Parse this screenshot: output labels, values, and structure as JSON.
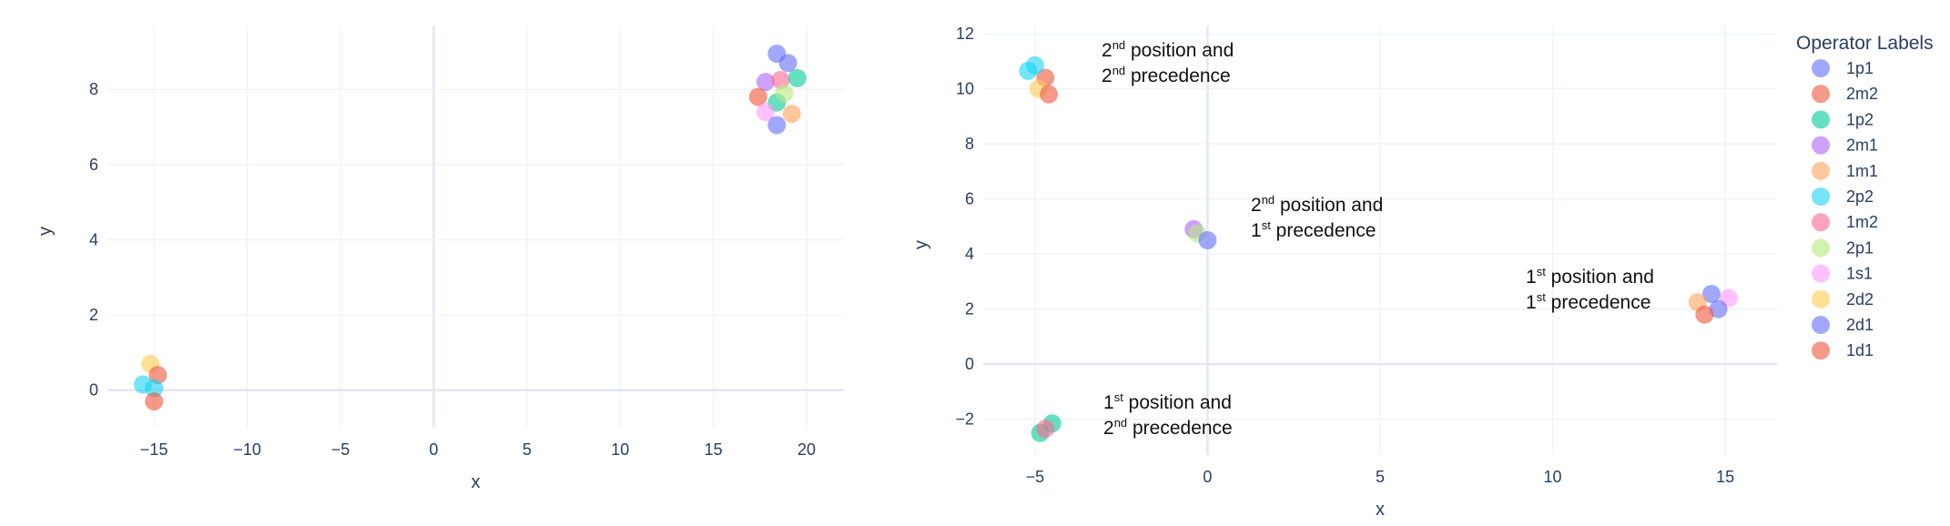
{
  "chart_data": [
    {
      "type": "scatter",
      "title": "",
      "xlabel": "x",
      "ylabel": "y",
      "xlim": [
        -17.5,
        22
      ],
      "ylim": [
        -1,
        9.7
      ],
      "xticks": [
        -15,
        -10,
        -5,
        0,
        5,
        10,
        15,
        20
      ],
      "yticks": [
        0,
        2,
        4,
        6,
        8
      ],
      "xtick_labels": [
        "−15",
        "−10",
        "−5",
        "0",
        "5",
        "10",
        "15",
        "20"
      ],
      "ytick_labels": [
        "0",
        "2",
        "4",
        "6",
        "8"
      ],
      "grid": true,
      "points": [
        {
          "x": 18.4,
          "y": 8.95,
          "color": "#636efa"
        },
        {
          "x": 19.0,
          "y": 8.7,
          "color": "#636efa"
        },
        {
          "x": 17.8,
          "y": 8.2,
          "color": "#ab63fa"
        },
        {
          "x": 18.6,
          "y": 8.25,
          "color": "#ff6692"
        },
        {
          "x": 19.5,
          "y": 8.3,
          "color": "#00cc96"
        },
        {
          "x": 17.4,
          "y": 7.8,
          "color": "#ef553b"
        },
        {
          "x": 18.4,
          "y": 7.65,
          "color": "#00cc96"
        },
        {
          "x": 18.8,
          "y": 7.9,
          "color": "#b6e880"
        },
        {
          "x": 17.8,
          "y": 7.4,
          "color": "#ff97ff"
        },
        {
          "x": 19.2,
          "y": 7.35,
          "color": "#ffa15a"
        },
        {
          "x": 18.4,
          "y": 7.05,
          "color": "#636efa"
        },
        {
          "x": -15.2,
          "y": 0.7,
          "color": "#fecb52"
        },
        {
          "x": -14.8,
          "y": 0.4,
          "color": "#ef553b"
        },
        {
          "x": -15.6,
          "y": 0.15,
          "color": "#19d3f3"
        },
        {
          "x": -15.0,
          "y": 0.05,
          "color": "#19d3f3"
        },
        {
          "x": -15.0,
          "y": -0.3,
          "color": "#ef553b"
        }
      ]
    },
    {
      "type": "scatter",
      "title": "",
      "xlabel": "x",
      "ylabel": "y",
      "xlim": [
        -6.5,
        16.5
      ],
      "ylim": [
        -3.3,
        12.3
      ],
      "xticks": [
        -5,
        0,
        5,
        10,
        15
      ],
      "yticks": [
        -2,
        0,
        2,
        4,
        6,
        8,
        10,
        12
      ],
      "xtick_labels": [
        "−5",
        "0",
        "5",
        "10",
        "15"
      ],
      "ytick_labels": [
        "−2",
        "0",
        "2",
        "4",
        "6",
        "8",
        "10",
        "12"
      ],
      "grid": true,
      "series": [
        {
          "name": "1p1",
          "color": "#636efa",
          "points": [
            {
              "x": 14.6,
              "y": 2.55
            }
          ]
        },
        {
          "name": "2m2",
          "color": "#ef553b",
          "points": [
            {
              "x": -4.7,
              "y": 10.4
            }
          ]
        },
        {
          "name": "1p2",
          "color": "#00cc96",
          "points": [
            {
              "x": -4.5,
              "y": -2.15
            },
            {
              "x": -4.85,
              "y": -2.5
            }
          ]
        },
        {
          "name": "2m1",
          "color": "#ab63fa",
          "points": [
            {
              "x": -0.4,
              "y": 4.9
            }
          ]
        },
        {
          "name": "1m1",
          "color": "#ffa15a",
          "points": [
            {
              "x": 14.2,
              "y": 2.25
            }
          ]
        },
        {
          "name": "2p2",
          "color": "#19d3f3",
          "points": [
            {
              "x": -5.2,
              "y": 10.65
            },
            {
              "x": -5.0,
              "y": 10.85
            }
          ]
        },
        {
          "name": "1m2",
          "color": "#ff6692",
          "points": [
            {
              "x": -4.7,
              "y": -2.35
            }
          ]
        },
        {
          "name": "2p1",
          "color": "#b6e880",
          "points": [
            {
              "x": -0.3,
              "y": 4.75
            }
          ]
        },
        {
          "name": "1s1",
          "color": "#ff97ff",
          "points": [
            {
              "x": 15.1,
              "y": 2.4
            }
          ]
        },
        {
          "name": "2d2",
          "color": "#fecb52",
          "points": [
            {
              "x": -4.9,
              "y": 10.0
            }
          ]
        },
        {
          "name": "2d1",
          "color": "#636efa",
          "points": [
            {
              "x": 0.0,
              "y": 4.5
            },
            {
              "x": 14.8,
              "y": 2.0
            }
          ]
        },
        {
          "name": "1d1",
          "color": "#ef553b",
          "points": [
            {
              "x": -4.6,
              "y": 9.8
            },
            {
              "x": 14.4,
              "y": 1.8
            }
          ]
        }
      ],
      "annotations": [
        {
          "id": "ann-2nd-2nd",
          "line1_num": "2",
          "line1_sup": "nd",
          "line1_rest": " position and",
          "line2_num": "2",
          "line2_sup": "nd",
          "line2_rest": " precedence"
        },
        {
          "id": "ann-2nd-1st",
          "line1_num": "2",
          "line1_sup": "nd",
          "line1_rest": " position and",
          "line2_num": "1",
          "line2_sup": "st",
          "line2_rest": " precedence"
        },
        {
          "id": "ann-1st-1st",
          "line1_num": "1",
          "line1_sup": "st",
          "line1_rest": " position and",
          "line2_num": "1",
          "line2_sup": "st",
          "line2_rest": " precedence"
        },
        {
          "id": "ann-1st-2nd",
          "line1_num": "1",
          "line1_sup": "st",
          "line1_rest": " position and",
          "line2_num": "2",
          "line2_sup": "nd",
          "line2_rest": " precedence"
        }
      ],
      "legend": {
        "title": "Operator Labels",
        "position": "right"
      }
    }
  ]
}
